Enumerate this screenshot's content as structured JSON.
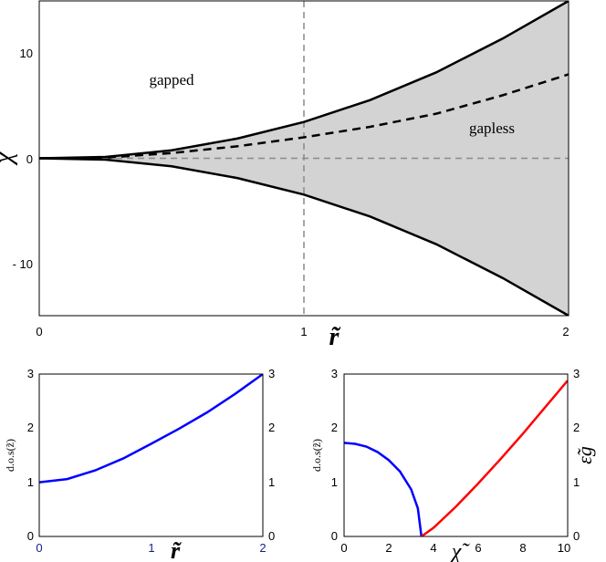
{
  "chart_data": [
    {
      "type": "area",
      "xlabel": "r̃",
      "ylabel": "χ̃",
      "xlim": [
        0,
        2
      ],
      "ylim": [
        -15,
        15
      ],
      "x_ticks": [
        {
          "value": 0,
          "label": "0"
        },
        {
          "value": 1,
          "label": "1"
        },
        {
          "value": 2,
          "label": "2"
        }
      ],
      "y_ticks": [
        {
          "value": 10,
          "label": "10"
        },
        {
          "value": 0,
          "label": "0"
        },
        {
          "value": -10,
          "label": "- 10"
        }
      ],
      "annotations": [
        {
          "text": "gapped",
          "x": 0.42,
          "y": 7.5
        },
        {
          "text": "gapless",
          "x": 1.75,
          "y": 2.8
        }
      ],
      "series": [
        {
          "role": "boundary-upper",
          "style": "solid",
          "color": "#000000",
          "x": [
            0,
            0.25,
            0.5,
            0.75,
            1.0,
            1.25,
            1.5,
            1.75,
            2.0
          ],
          "y": [
            0,
            0.13,
            0.76,
            1.89,
            3.46,
            5.55,
            8.19,
            11.4,
            15.0
          ]
        },
        {
          "role": "boundary-lower",
          "style": "solid",
          "color": "#000000",
          "x": [
            0,
            0.25,
            0.5,
            0.75,
            1.0,
            1.25,
            1.5,
            1.75,
            2.0
          ],
          "y": [
            0,
            -0.13,
            -0.76,
            -1.89,
            -3.46,
            -5.55,
            -8.19,
            -11.4,
            -15.0
          ]
        },
        {
          "role": "middle",
          "style": "dashed",
          "color": "#000000",
          "x": [
            0,
            0.25,
            0.5,
            0.75,
            1.0,
            1.25,
            1.5,
            1.75,
            2.0
          ],
          "y": [
            0,
            0.06,
            0.5,
            1.15,
            2.0,
            3.0,
            4.25,
            6.0,
            8.0
          ]
        }
      ],
      "reference_lines": [
        {
          "orientation": "vertical",
          "value": 1,
          "style": "dashed",
          "color": "#8a8a8a"
        },
        {
          "orientation": "horizontal",
          "value": 0,
          "style": "dashed",
          "color": "#8a8a8a"
        }
      ],
      "fill_color": "#d3d3d3"
    },
    {
      "type": "line",
      "xlabel": "r̃",
      "ylabel": "d.o.s(z̃)",
      "xlim": [
        0,
        2
      ],
      "ylim": [
        0,
        3
      ],
      "x_ticks": [
        {
          "value": 0,
          "label": "0"
        },
        {
          "value": 1,
          "label": "1"
        },
        {
          "value": 2,
          "label": "2"
        }
      ],
      "y_ticks": [
        {
          "value": 0,
          "label": "0"
        },
        {
          "value": 1,
          "label": "1"
        },
        {
          "value": 2,
          "label": "2"
        },
        {
          "value": 3,
          "label": "3"
        }
      ],
      "series": [
        {
          "color": "#0000ff",
          "x": [
            0,
            0.25,
            0.5,
            0.75,
            1.0,
            1.25,
            1.5,
            1.75,
            2.0
          ],
          "y": [
            1.0,
            1.06,
            1.22,
            1.44,
            1.71,
            1.99,
            2.29,
            2.63,
            3.0
          ]
        }
      ]
    },
    {
      "type": "line",
      "xlabel": "χ̃",
      "ylabel": "d.o.s(z̃)",
      "y2label": "ε̃g",
      "xlim": [
        0,
        10
      ],
      "ylim": [
        0,
        3
      ],
      "x_ticks": [
        {
          "value": 0,
          "label": "0"
        },
        {
          "value": 2,
          "label": "2"
        },
        {
          "value": 4,
          "label": "4"
        },
        {
          "value": 6,
          "label": "6"
        },
        {
          "value": 8,
          "label": "8"
        },
        {
          "value": 10,
          "label": "10"
        }
      ],
      "y_ticks": [
        {
          "value": 0,
          "label": "0"
        },
        {
          "value": 1,
          "label": "1"
        },
        {
          "value": 2,
          "label": "2"
        },
        {
          "value": 3,
          "label": "3"
        }
      ],
      "series": [
        {
          "color": "#0000ff",
          "x": [
            0,
            0.5,
            1.0,
            1.5,
            2.0,
            2.5,
            3.0,
            3.3,
            3.46
          ],
          "y": [
            1.73,
            1.71,
            1.66,
            1.56,
            1.41,
            1.2,
            0.87,
            0.52,
            0.0
          ]
        },
        {
          "color": "#ff0000",
          "x": [
            3.46,
            4.0,
            5.0,
            6.0,
            7.0,
            8.0,
            9.0,
            10.0
          ],
          "y": [
            0.0,
            0.16,
            0.55,
            0.98,
            1.43,
            1.9,
            2.39,
            2.88
          ]
        }
      ]
    }
  ]
}
